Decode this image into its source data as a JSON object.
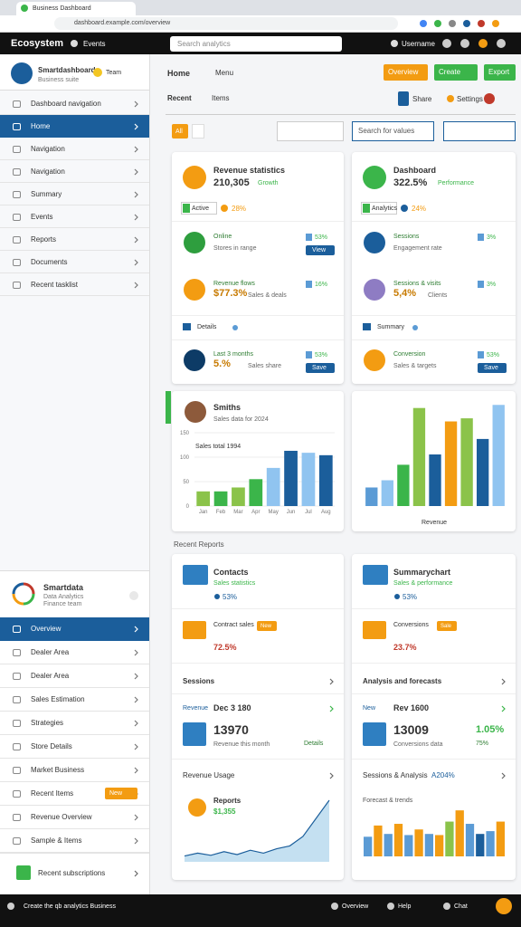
{
  "browser": {
    "tab": "Business Dashboard",
    "url": "dashboard.example.com/overview"
  },
  "header": {
    "brand": "Ecosystem",
    "nav": "Events",
    "search": "Search analytics",
    "user": "Username"
  },
  "sidebar": {
    "profile": {
      "name": "Smartdashboard",
      "role": "Business suite",
      "badge": "Team"
    },
    "menu": [
      "Dashboard navigation",
      "Home",
      "Navigation",
      "Navigation",
      "Summary",
      "Events",
      "Reports",
      "Documents",
      "Recent tasklist"
    ],
    "active": 1,
    "panel": {
      "name": "Smartdata",
      "sub": "Data Analytics",
      "role": "Finance team"
    },
    "panel_menu": [
      "Overview",
      "Dealer Area",
      "Dealer Area",
      "Sales Estimation",
      "Strategies",
      "Store Details",
      "Market Business",
      "Recent Items",
      "Revenue Overview",
      "Sample & Items"
    ],
    "panel_active": 0,
    "panel_badge": {
      "item": 7,
      "label": "New"
    },
    "footer": "Recent subscriptions"
  },
  "main": {
    "title": "Home",
    "tab": "Menu",
    "buttons": [
      {
        "label": "Overview",
        "color": "#f39c12"
      },
      {
        "label": "Create",
        "color": "#3bb54a"
      },
      {
        "label": "Export",
        "color": "#3bb54a"
      }
    ],
    "subtitle": "Recent",
    "subtab": "Items",
    "controls": [
      "Share",
      "Settings"
    ],
    "filter": {
      "chip": "All",
      "search": "Search for values"
    }
  },
  "stat_cards": [
    {
      "title": "Revenue statistics",
      "value": "210,305",
      "note": "Growth",
      "icon": "#f39c12",
      "tag": "Active",
      "pct": "28%",
      "rows": [
        {
          "label": "Online",
          "sub": "Stores in range",
          "pct": "53%",
          "action": "View",
          "color": "#2e9e3e"
        },
        {
          "label": "Revenue flows",
          "sub": "Sales & deals",
          "value": "$77.3%",
          "pct": "16%",
          "color": "#f39c12"
        },
        {
          "label": "Last 3 months",
          "sub": "Sales share",
          "value": "5.%",
          "pct": "53%",
          "action": "Save",
          "color": "#0d3b66"
        }
      ],
      "footnote": "Details"
    },
    {
      "title": "Dashboard",
      "value": "322.5%",
      "note": "Performance",
      "icon": "#3bb54a",
      "tag": "Analytics",
      "pct": "24%",
      "rows": [
        {
          "label": "Sessions",
          "sub": "Engagement rate",
          "pct": "3%",
          "color": "#1b5e9b"
        },
        {
          "label": "Sessions & visits",
          "sub": "Clients",
          "value": "5,4%",
          "pct": "3%",
          "color": "#8e7cc3"
        },
        {
          "label": "Conversion",
          "sub": "Sales & targets",
          "pct": "53%",
          "action": "Save",
          "color": "#f39c12"
        }
      ],
      "footnote": "Summary"
    }
  ],
  "chart_cards": [
    {
      "name": "Smiths",
      "sub": "Sales data for 2024",
      "label": "Sales total 1994",
      "categories": [
        "Jan",
        "Feb",
        "Mar",
        "Apr",
        "May",
        "Jun",
        "Jul",
        "Aug"
      ],
      "values": [
        30,
        30,
        38,
        55,
        78,
        113,
        109,
        104
      ],
      "colors": [
        "#8bc34a",
        "#3bb54a",
        "#8bc34a",
        "#3bb54a",
        "#90c4f0",
        "#1b5e9b",
        "#90c4f0",
        "#1b5e9b"
      ],
      "ylim": [
        0,
        150
      ],
      "yticks": [
        0,
        50,
        100,
        150
      ]
    },
    {
      "label": "Revenue",
      "values": [
        18,
        25,
        40,
        95,
        50,
        82,
        85,
        65,
        98
      ],
      "colors": [
        "#5b9bd5",
        "#90c4f0",
        "#3bb54a",
        "#8bc34a",
        "#1b5e9b",
        "#f39c12",
        "#8bc34a",
        "#1b5e9b",
        "#90c4f0"
      ],
      "ylim": [
        0,
        100
      ]
    }
  ],
  "section": "Recent Reports",
  "bottom_cards": [
    {
      "title": "Contacts",
      "sub": "Sales statistics",
      "pct": "53%",
      "promo": {
        "label": "Contract sales",
        "badge": "New",
        "value": "72.5%"
      },
      "section": "Sessions",
      "stat": {
        "label": "Revenue",
        "value": "Dec 3 180",
        "big": "13970",
        "sub": "Revenue this month",
        "link": "Details"
      },
      "chart_title": "Revenue Usage",
      "chart": {
        "type": "area",
        "label": "Reports",
        "value": "$1,355",
        "values": [
          8,
          12,
          9,
          14,
          10,
          16,
          12,
          18,
          22,
          35,
          60,
          85
        ],
        "ylim": [
          0,
          100
        ],
        "color": "#9ccbe8"
      }
    },
    {
      "title": "Summarychart",
      "sub": "Sales & performance",
      "pct": "53%",
      "promo": {
        "label": "Conversions",
        "badge": "Sale",
        "value": "23.7%"
      },
      "section": "Analysis and forecasts",
      "stat": {
        "label": "New",
        "value": "Rev 1600",
        "big": "13009",
        "pct": "1.05%",
        "sub": "Conversions data",
        "link": "75%"
      },
      "chart_title": "Sessions & Analysis",
      "chart": {
        "type": "bar",
        "label": "Forecast & trends",
        "value": "A204%",
        "values": [
          35,
          55,
          40,
          58,
          38,
          48,
          40,
          38,
          62,
          82,
          58,
          40,
          45,
          62
        ],
        "colors": [
          "#5b9bd5",
          "#f39c12",
          "#5b9bd5",
          "#f39c12",
          "#5b9bd5",
          "#f39c12",
          "#5b9bd5",
          "#f39c12",
          "#8bc34a",
          "#f39c12",
          "#5b9bd5",
          "#1b5e9b",
          "#5b9bd5",
          "#f39c12"
        ],
        "ylim": [
          0,
          100
        ]
      }
    }
  ],
  "footer": {
    "text": "Create the qb analytics Business",
    "links": [
      "Overview",
      "Help",
      "Chat"
    ]
  }
}
